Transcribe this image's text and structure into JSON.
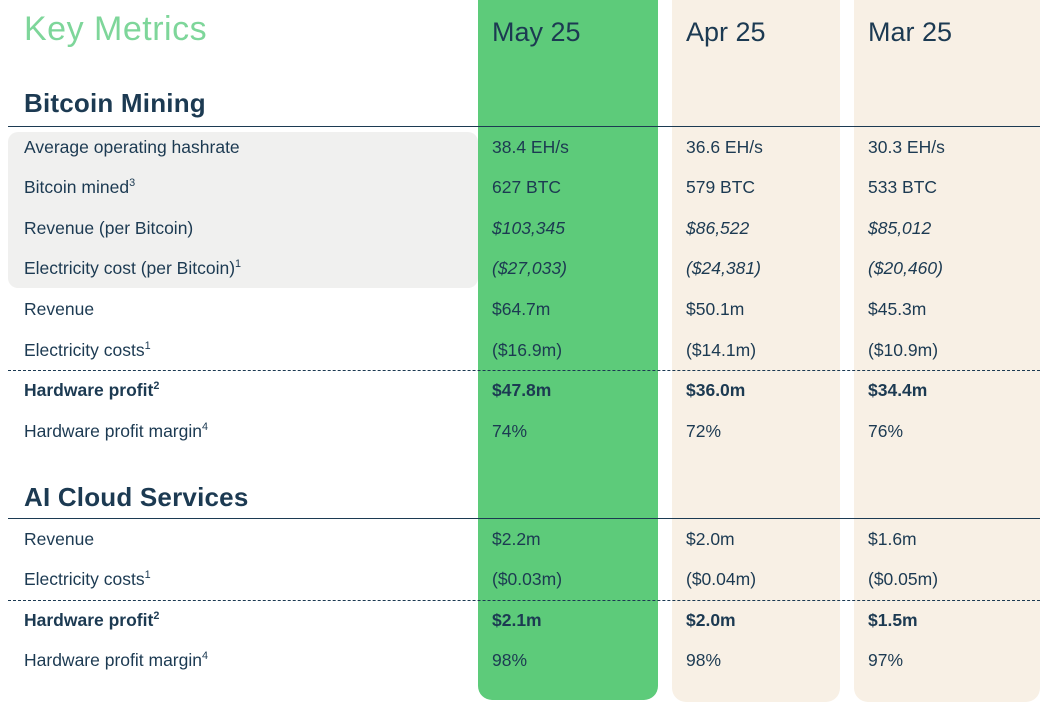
{
  "title": "Key Metrics",
  "columns": [
    "May 25",
    "Apr 25",
    "Mar 25"
  ],
  "sections": [
    {
      "name": "Bitcoin Mining",
      "rows": [
        {
          "label": "Average operating hashrate",
          "sup": "",
          "values": [
            "38.4 EH/s",
            "36.6 EH/s",
            "30.3 EH/s"
          ]
        },
        {
          "label": "Bitcoin mined",
          "sup": "3",
          "values": [
            "627 BTC",
            "579 BTC",
            "533 BTC"
          ]
        },
        {
          "label": "Revenue (per Bitcoin)",
          "sup": "",
          "values": [
            "$103,345",
            "$86,522",
            "$85,012"
          ]
        },
        {
          "label": "Electricity cost (per Bitcoin)",
          "sup": "1",
          "values": [
            "($27,033)",
            "($24,381)",
            "($20,460)"
          ]
        },
        {
          "label": "Revenue",
          "sup": "",
          "values": [
            "$64.7m",
            "$50.1m",
            "$45.3m"
          ]
        },
        {
          "label": "Electricity costs",
          "sup": "1",
          "values": [
            "($16.9m)",
            "($14.1m)",
            "($10.9m)"
          ]
        },
        {
          "label": "Hardware profit",
          "sup": "2",
          "values": [
            "$47.8m",
            "$36.0m",
            "$34.4m"
          ]
        },
        {
          "label": "Hardware profit margin",
          "sup": "4",
          "values": [
            "74%",
            "72%",
            "76%"
          ]
        }
      ]
    },
    {
      "name": "AI Cloud Services",
      "rows": [
        {
          "label": "Revenue",
          "sup": "",
          "values": [
            "$2.2m",
            "$2.0m",
            "$1.6m"
          ]
        },
        {
          "label": "Electricity costs",
          "sup": "1",
          "values": [
            "($0.03m)",
            "($0.04m)",
            "($0.05m)"
          ]
        },
        {
          "label": "Hardware profit",
          "sup": "2",
          "values": [
            "$2.1m",
            "$2.0m",
            "$1.5m"
          ]
        },
        {
          "label": "Hardware profit margin",
          "sup": "4",
          "values": [
            "98%",
            "98%",
            "97%"
          ]
        }
      ]
    }
  ],
  "colors": {
    "highlight_column_green": "#5DCB7A",
    "title_green": "#7ED69A",
    "text_navy": "#1C3A52",
    "column_cream": "#F8F0E5",
    "row_group_gray": "#F0F0EF"
  }
}
